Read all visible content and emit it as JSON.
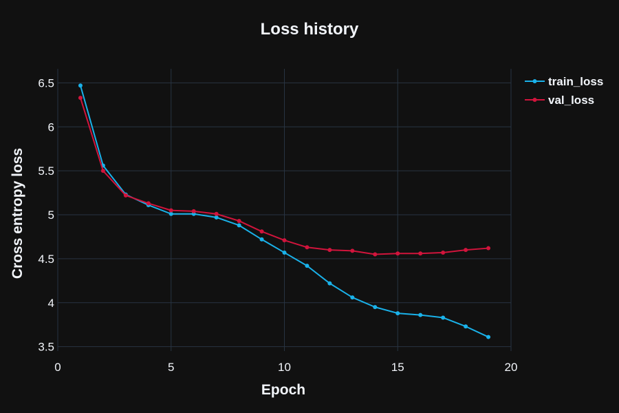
{
  "chart_data": {
    "type": "line",
    "title": "Loss history",
    "xlabel": "Epoch",
    "ylabel": "Cross entropy loss",
    "xlim": [
      0,
      20
    ],
    "ylim": [
      3.45,
      6.66
    ],
    "xticks": [
      0,
      5,
      10,
      15,
      20
    ],
    "yticks": [
      3.5,
      4,
      4.5,
      5,
      5.5,
      6,
      6.5
    ],
    "xtick_labels": [
      "0",
      "5",
      "10",
      "15",
      "20"
    ],
    "ytick_labels": [
      "3.5",
      "4",
      "4.5",
      "5",
      "5.5",
      "6",
      "6.5"
    ],
    "grid": true,
    "legend_position": "top-right",
    "x": [
      1,
      2,
      3,
      4,
      5,
      6,
      7,
      8,
      9,
      10,
      11,
      12,
      13,
      14,
      15,
      16,
      17,
      18,
      19
    ],
    "series": [
      {
        "name": "train_loss",
        "color": "#1ab2ea",
        "values": [
          6.47,
          5.56,
          5.23,
          5.11,
          5.01,
          5.01,
          4.97,
          4.88,
          4.72,
          4.57,
          4.42,
          4.22,
          4.06,
          3.95,
          3.88,
          3.86,
          3.83,
          3.73,
          3.61
        ]
      },
      {
        "name": "val_loss",
        "color": "#d1143c",
        "values": [
          6.33,
          5.5,
          5.22,
          5.13,
          5.05,
          5.04,
          5.01,
          4.93,
          4.81,
          4.71,
          4.63,
          4.6,
          4.59,
          4.55,
          4.56,
          4.56,
          4.57,
          4.6,
          4.62
        ]
      }
    ]
  },
  "colors": {
    "background": "#111111",
    "grid": "#283442",
    "text": "#f2f5fa"
  }
}
